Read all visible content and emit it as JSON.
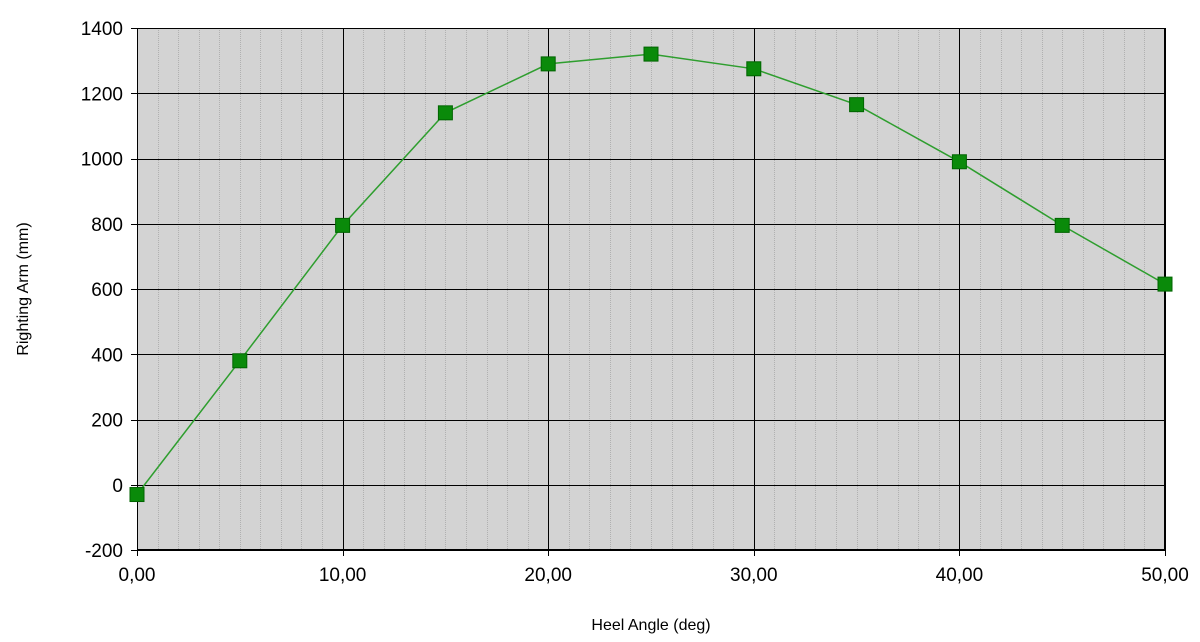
{
  "chart_data": {
    "type": "line",
    "title": "",
    "xlabel": "Heel Angle (deg)",
    "ylabel": "Righting Arm (mm)",
    "xlim": [
      0,
      50
    ],
    "ylim": [
      -200,
      1400
    ],
    "x_ticks": [
      "0,00",
      "10,00",
      "20,00",
      "30,00",
      "40,00",
      "50,00"
    ],
    "y_ticks": [
      "-200",
      "0",
      "200",
      "400",
      "600",
      "800",
      "1000",
      "1200",
      "1400"
    ],
    "x_tick_values": [
      0,
      10,
      20,
      30,
      40,
      50
    ],
    "y_tick_values": [
      -200,
      0,
      200,
      400,
      600,
      800,
      1000,
      1200,
      1400
    ],
    "minor_x_step": 1,
    "grid": true,
    "legend": "none",
    "series": [
      {
        "color": "#2e9e2e",
        "marker": "square",
        "marker_color": "#0a8a0a",
        "x": [
          0,
          5,
          10,
          15,
          20,
          25,
          30,
          35,
          40,
          45,
          50
        ],
        "y": [
          -30,
          380,
          795,
          1140,
          1290,
          1320,
          1275,
          1165,
          990,
          795,
          615
        ]
      }
    ],
    "plot_background": "#d3d3d3",
    "major_grid_color": "#000000",
    "minor_grid_color": "#b0b0b0"
  }
}
